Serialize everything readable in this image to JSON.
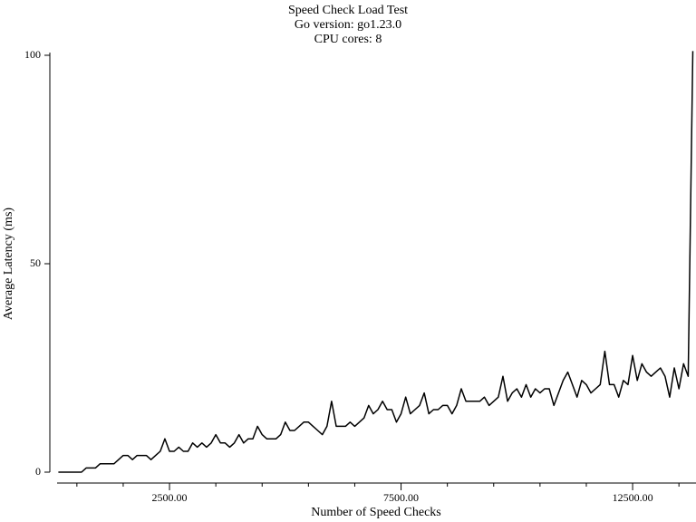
{
  "chart_data": {
    "type": "line",
    "title_lines": [
      "Speed Check Load Test",
      "Go version: go1.23.0",
      "CPU cores: 8"
    ],
    "x_label": "Number of Speed Checks",
    "y_label": "Average Latency (ms)",
    "color": "#000000",
    "xlim": [
      100,
      13800
    ],
    "ylim": [
      0,
      100
    ],
    "xticks": [
      {
        "value": 2500,
        "label": "2500.00"
      },
      {
        "value": 7500,
        "label": "7500.00"
      },
      {
        "value": 12500,
        "label": "12500.00"
      }
    ],
    "xminorticks": [
      500,
      1500,
      3500,
      4500,
      5500,
      6500,
      8500,
      9500,
      10500,
      11500,
      13500
    ],
    "yticks": [
      0,
      50,
      100
    ],
    "x": [
      100,
      200,
      300,
      400,
      500,
      600,
      700,
      800,
      900,
      1000,
      1100,
      1200,
      1300,
      1400,
      1500,
      1600,
      1700,
      1800,
      1900,
      2000,
      2100,
      2200,
      2300,
      2400,
      2500,
      2600,
      2700,
      2800,
      2900,
      3000,
      3100,
      3200,
      3300,
      3400,
      3500,
      3600,
      3700,
      3800,
      3900,
      4000,
      4100,
      4200,
      4300,
      4400,
      4500,
      4600,
      4700,
      4800,
      4900,
      5000,
      5100,
      5200,
      5300,
      5400,
      5500,
      5600,
      5700,
      5800,
      5900,
      6000,
      6100,
      6200,
      6300,
      6400,
      6500,
      6600,
      6700,
      6800,
      6900,
      7000,
      7100,
      7200,
      7300,
      7400,
      7500,
      7600,
      7700,
      7800,
      7900,
      8000,
      8100,
      8200,
      8300,
      8400,
      8500,
      8600,
      8700,
      8800,
      8900,
      9000,
      9100,
      9200,
      9300,
      9400,
      9500,
      9600,
      9700,
      9800,
      9900,
      10000,
      10100,
      10200,
      10300,
      10400,
      10500,
      10600,
      10700,
      10800,
      10900,
      11000,
      11100,
      11200,
      11300,
      11400,
      11500,
      11600,
      11700,
      11800,
      11900,
      12000,
      12100,
      12200,
      12300,
      12400,
      12500,
      12600,
      12700,
      12800,
      12900,
      13000,
      13100,
      13200,
      13300,
      13400,
      13500,
      13600,
      13700,
      13800
    ],
    "values": [
      0,
      0,
      0,
      0,
      0,
      0,
      1,
      1,
      1,
      2,
      2,
      2,
      2,
      3,
      4,
      4,
      3,
      4,
      4,
      4,
      3,
      4,
      5,
      8,
      5,
      5,
      6,
      5,
      5,
      7,
      6,
      7,
      6,
      7,
      9,
      7,
      7,
      6,
      7,
      9,
      7,
      8,
      8,
      11,
      9,
      8,
      8,
      8,
      9,
      12,
      10,
      10,
      11,
      12,
      12,
      11,
      10,
      9,
      11,
      17,
      11,
      11,
      11,
      12,
      11,
      12,
      13,
      16,
      14,
      15,
      17,
      15,
      15,
      12,
      14,
      18,
      14,
      15,
      16,
      19,
      14,
      15,
      15,
      16,
      16,
      14,
      16,
      20,
      17,
      17,
      17,
      17,
      18,
      16,
      17,
      18,
      23,
      17,
      19,
      20,
      18,
      21,
      18,
      20,
      19,
      20,
      20,
      16,
      19,
      22,
      24,
      21,
      18,
      22,
      21,
      19,
      20,
      21,
      29,
      21,
      21,
      18,
      22,
      21,
      28,
      22,
      26,
      24,
      23,
      24,
      25,
      23,
      18,
      25,
      20,
      26,
      23,
      101
    ]
  }
}
